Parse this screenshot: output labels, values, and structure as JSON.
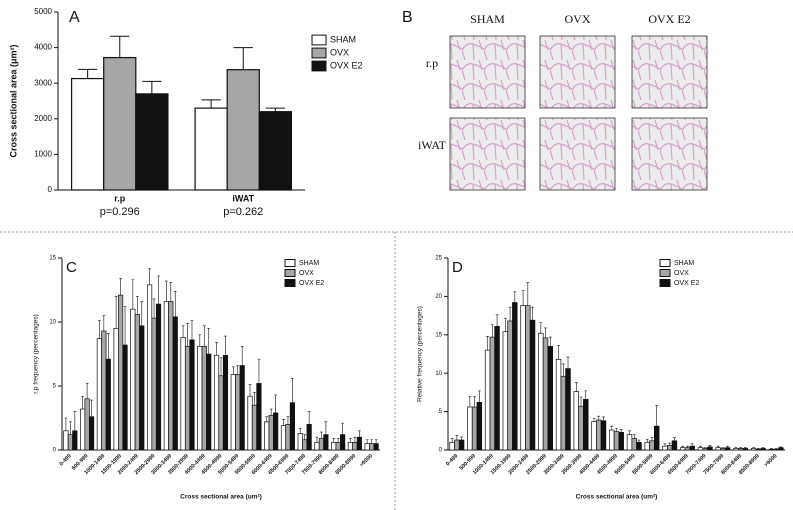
{
  "chart_data": [
    {
      "type": "bar",
      "label": "A",
      "ylabel": "Cross sectional area (μm²)",
      "categories": [
        "r.p",
        "iWAT"
      ],
      "category_notes": [
        "p=0.296",
        "p=0.262"
      ],
      "series": [
        {
          "name": "SHAM",
          "color": "#ffffff",
          "values": [
            3130,
            2300
          ],
          "errors": [
            260,
            230
          ]
        },
        {
          "name": "OVX",
          "color": "#a6a6a6",
          "values": [
            3720,
            3380
          ],
          "errors": [
            600,
            620
          ]
        },
        {
          "name": "OVX E2",
          "color": "#111111",
          "values": [
            2700,
            2200
          ],
          "errors": [
            350,
            100
          ]
        }
      ],
      "ylim": [
        0,
        5000
      ],
      "yticks": [
        0,
        1000,
        2000,
        3000,
        4000,
        5000
      ],
      "legend": "upper right"
    },
    {
      "type": "bar",
      "label": "C",
      "ylabel": "r.p frequency (percentages)",
      "xlabel": "Cross sectional area (um²)",
      "categories": [
        "0-499",
        "500-999",
        "1000-1499",
        "1500-1999",
        "2000-2499",
        "2500-2999",
        "3000-3499",
        "3500-3999",
        "4000-4499",
        "4500-4999",
        "5000-5499",
        "5500-5999",
        "6000-6499",
        "6500-6999",
        "7000-7499",
        "7500-7999",
        "8000-8499",
        "8500-8999",
        ">9000"
      ],
      "series": [
        {
          "name": "SHAM",
          "color": "#ffffff",
          "values": [
            1.5,
            3.2,
            8.7,
            9.5,
            11.0,
            12.9,
            11.6,
            8.8,
            8.1,
            7.4,
            5.9,
            4.2,
            2.2,
            1.9,
            1.3,
            0.6,
            0.6,
            0.6,
            0.5
          ],
          "errors": [
            1,
            1,
            1.4,
            2.5,
            2.3,
            1.3,
            1.6,
            0.9,
            0.9,
            1,
            0.6,
            0.9,
            0.4,
            0.5,
            0.4,
            0.4,
            0.3,
            0.3,
            0.3
          ]
        },
        {
          "name": "OVX",
          "color": "#a6a6a6",
          "values": [
            1.2,
            4.0,
            9.3,
            12.1,
            10.6,
            10.3,
            11.6,
            8.1,
            8.1,
            5.8,
            5.9,
            3.5,
            2.7,
            2.0,
            0.8,
            0.9,
            0.6,
            0.6,
            0.5
          ],
          "errors": [
            1,
            1.2,
            1.2,
            1.3,
            1.4,
            1.5,
            1.5,
            1.8,
            1.6,
            1.4,
            0.7,
            1,
            0.5,
            0.6,
            0.4,
            0.5,
            0.3,
            0.4,
            0.3
          ]
        },
        {
          "name": "OVX E2",
          "color": "#111111",
          "values": [
            1.5,
            2.6,
            7.1,
            8.2,
            9.7,
            11.4,
            10.4,
            8.6,
            7.5,
            7.4,
            6.6,
            5.2,
            2.9,
            3.7,
            2.0,
            1.2,
            1.2,
            1.0,
            0.5
          ],
          "errors": [
            1.5,
            1.3,
            2,
            3,
            1.9,
            2.2,
            2,
            1.5,
            2,
            1.5,
            1.5,
            1.9,
            1.4,
            1.9,
            1,
            1,
            0.9,
            0.5,
            0.3
          ]
        }
      ],
      "ylim": [
        0,
        15
      ],
      "yticks": [
        0,
        5,
        10,
        15
      ],
      "legend": "upper right"
    },
    {
      "type": "bar",
      "label": "D",
      "ylabel": "Relative frequency (percentages)",
      "xlabel": "Cross sectional area (um²)",
      "categories": [
        "0-499",
        "500-999",
        "1000-1499",
        "1500-1999",
        "2000-2499",
        "2500-2999",
        "3000-3499",
        "3500-3999",
        "4000-4499",
        "4500-4999",
        "5000-5499",
        "5500-5999",
        "6000-6499",
        "6500-6999",
        "7000-7499",
        "7500-7999",
        "8000-8499",
        "8500-8999",
        ">9000"
      ],
      "series": [
        {
          "name": "SHAM",
          "color": "#ffffff",
          "values": [
            1.0,
            5.6,
            13.0,
            15.4,
            18.8,
            15.2,
            11.8,
            7.6,
            3.7,
            2.6,
            2.0,
            1.0,
            0.5,
            0.3,
            0.3,
            0.3,
            0.2,
            0.2,
            0.1
          ],
          "errors": [
            0.5,
            1.4,
            1.8,
            1.7,
            2,
            1.4,
            1.8,
            1.2,
            0.4,
            0.5,
            0.5,
            0.4,
            0.3,
            0.2,
            0.2,
            0.2,
            0.1,
            0.1,
            0.1
          ]
        },
        {
          "name": "OVX",
          "color": "#a6a6a6",
          "values": [
            1.3,
            5.6,
            14.7,
            16.8,
            18.8,
            14.6,
            9.6,
            5.7,
            3.9,
            2.4,
            1.5,
            1.2,
            0.6,
            0.3,
            0.2,
            0.2,
            0.2,
            0.1,
            0.1
          ],
          "errors": [
            0.6,
            1.4,
            1.6,
            1.8,
            3,
            1.3,
            1.6,
            1.2,
            0.5,
            0.4,
            0.5,
            0.4,
            0.3,
            0.2,
            0.1,
            0.1,
            0.1,
            0.1,
            0.1
          ]
        },
        {
          "name": "OVX E2",
          "color": "#111111",
          "values": [
            1.3,
            6.2,
            16.1,
            19.2,
            16.9,
            13.5,
            10.6,
            6.6,
            3.8,
            2.3,
            1.0,
            3.1,
            1.2,
            0.5,
            0.4,
            0.3,
            0.2,
            0.2,
            0.3
          ],
          "errors": [
            0.4,
            1.5,
            1.5,
            1.4,
            1.7,
            1.2,
            1.5,
            1.1,
            0.5,
            0.4,
            0.3,
            2.7,
            0.4,
            0.3,
            0.2,
            0.2,
            0.1,
            0.1,
            0.1
          ]
        }
      ],
      "ylim": [
        0,
        25
      ],
      "yticks": [
        0,
        5,
        10,
        15,
        20,
        25
      ],
      "legend": "upper right"
    }
  ],
  "panel_b": {
    "label": "B",
    "columns": [
      "SHAM",
      "OVX",
      "OVX E2"
    ],
    "rows": [
      "r.p",
      "iWAT"
    ]
  }
}
